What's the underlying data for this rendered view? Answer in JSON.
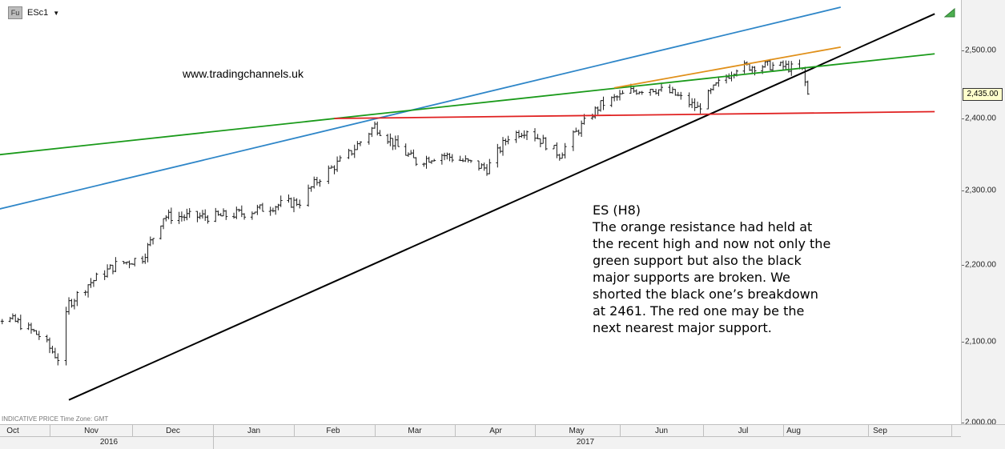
{
  "header": {
    "badge": "Fu",
    "symbol": "ESc1",
    "dropdown_caret": "▼"
  },
  "watermark": "www.tradingchannels.uk",
  "annotation": {
    "lines": [
      "ES (H8)",
      "The orange resistance had held at",
      "the recent high and now not only the",
      "green support but also the black",
      "major supports are broken. We",
      "shorted the black one’s breakdown",
      "at 2461. The red one may be the",
      "next nearest major support."
    ]
  },
  "footer_note": "INDICATIVE PRICE   Time Zone: GMT",
  "last_price_label": "2,435.00",
  "colors": {
    "candles": "#1a1a1a",
    "blue_line": "#2e86c8",
    "green_line": "#1a9a1a",
    "red_line": "#e02020",
    "orange_line": "#e0901a",
    "black_line": "#000000"
  },
  "chart_data": {
    "type": "line",
    "title": "",
    "xlabel": "",
    "ylabel": "",
    "ylim": [
      2000,
      2560
    ],
    "y_ticks": [
      2000,
      2100,
      2200,
      2300,
      2400,
      2500
    ],
    "y_tick_labels": [
      "2,000.00",
      "2,100.00",
      "2,200.00",
      "2,300.00",
      "2,400.00",
      "2,500.00"
    ],
    "x_months": [
      "Oct",
      "Nov",
      "Dec",
      "Jan",
      "Feb",
      "Mar",
      "Apr",
      "May",
      "Jun",
      "Jul",
      "Aug",
      "Sep"
    ],
    "x_years": [
      "2016",
      "2017"
    ],
    "price_series": {
      "name": "",
      "dates": [
        "2016-10-01",
        "2016-10-10",
        "2016-10-20",
        "2016-10-28",
        "2016-11-04",
        "2016-11-08",
        "2016-11-15",
        "2016-11-25",
        "2016-12-05",
        "2016-12-13",
        "2016-12-22",
        "2017-01-03",
        "2017-01-13",
        "2017-01-25",
        "2017-02-03",
        "2017-02-10",
        "2017-02-20",
        "2017-03-01",
        "2017-03-10",
        "2017-03-17",
        "2017-03-27",
        "2017-04-05",
        "2017-04-13",
        "2017-04-21",
        "2017-04-28",
        "2017-05-10",
        "2017-05-17",
        "2017-05-25",
        "2017-06-05",
        "2017-06-12",
        "2017-06-20",
        "2017-06-29",
        "2017-07-06",
        "2017-07-14",
        "2017-07-25",
        "2017-08-02",
        "2017-08-08",
        "2017-08-10"
      ],
      "values": [
        2140,
        2135,
        2125,
        2108,
        2080,
        2150,
        2175,
        2200,
        2210,
        2265,
        2265,
        2265,
        2270,
        2280,
        2285,
        2318,
        2350,
        2390,
        2360,
        2340,
        2350,
        2340,
        2330,
        2375,
        2385,
        2350,
        2385,
        2420,
        2440,
        2445,
        2437,
        2415,
        2448,
        2475,
        2478,
        2476,
        2470,
        2435
      ]
    },
    "trendlines": [
      {
        "color": "black",
        "points": [
          [
            "2016-11-08",
            2028
          ],
          [
            "2017-09-25",
            2555
          ]
        ]
      },
      {
        "color": "blue",
        "points": [
          [
            "2016-10-01",
            2265
          ],
          [
            "2017-08-22",
            2565
          ]
        ]
      },
      {
        "color": "green",
        "points": [
          [
            "2016-10-01",
            2345
          ],
          [
            "2017-09-25",
            2495
          ]
        ]
      },
      {
        "color": "red",
        "points": [
          [
            "2017-02-15",
            2400
          ],
          [
            "2017-09-25",
            2410
          ]
        ]
      },
      {
        "color": "orange",
        "points": [
          [
            "2017-05-30",
            2445
          ],
          [
            "2017-08-22",
            2505
          ]
        ]
      }
    ],
    "last_price": 2435,
    "grid": false,
    "legend": "none"
  }
}
